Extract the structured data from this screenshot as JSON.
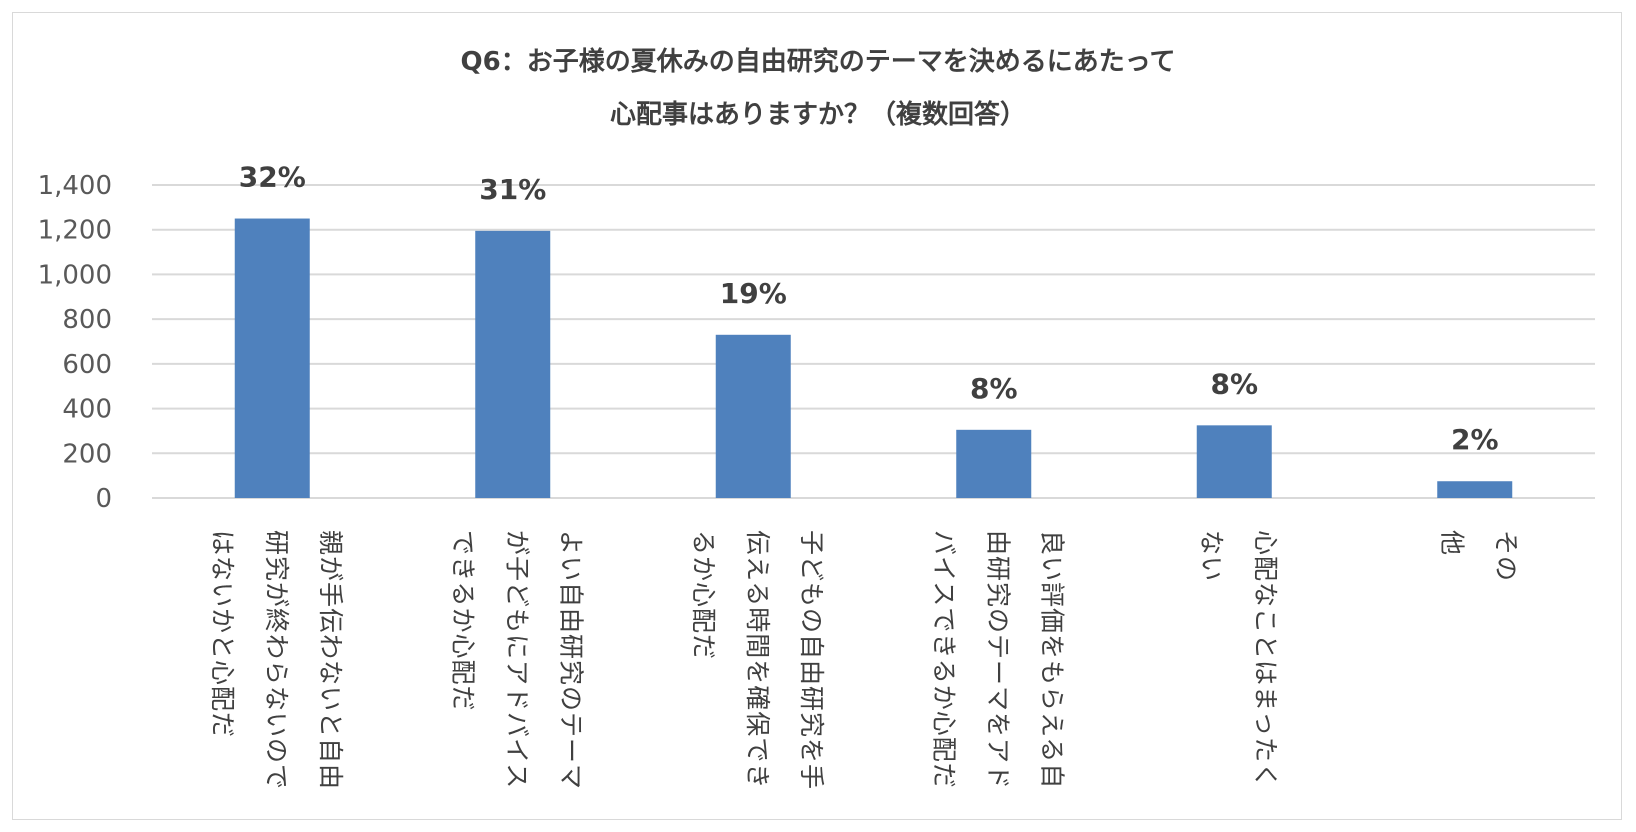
{
  "chart_data": {
    "type": "bar",
    "title": "Q6：お子様の夏休みの自由研究のテーマを決めるにあたって",
    "subtitle": "心配事はありますか？（複数回答）",
    "xlabel": "",
    "ylabel": "",
    "ylim": [
      0,
      1400
    ],
    "yticks": [
      0,
      200,
      400,
      600,
      800,
      1000,
      1200,
      1400
    ],
    "ytick_labels": [
      "0",
      "200",
      "400",
      "600",
      "800",
      "1,000",
      "1,200",
      "1,400"
    ],
    "grid": true,
    "categories": [
      "親が手伝わないと自由研究が終わらないのではないかと心配だ",
      "よい自由研究のテーマが子どもにアドバイスできるか心配だ",
      "子どもの自由研究を手伝える時間を確保できるか心配だ",
      "良い評価をもらえる自由研究のテーマをアドバイスできるか心配だ",
      "心配なことはまったくない",
      "その他"
    ],
    "category_lines": [
      [
        "親が手伝わないと自由",
        "研究が終わらないので",
        "はないかと心配だ"
      ],
      [
        "よい自由研究のテーマ",
        "が子どもにアドバイス",
        "できるか心配だ"
      ],
      [
        "子どもの自由研究を手",
        "伝える時間を確保でき",
        "るか心配だ"
      ],
      [
        "良い評価をもらえる自",
        "由研究のテーマをアド",
        "バイスできるか心配だ"
      ],
      [
        "心配なことはまったく",
        "ない"
      ],
      [
        "その",
        "他"
      ]
    ],
    "values": [
      1250,
      1195,
      730,
      305,
      325,
      75
    ],
    "data_labels": [
      "32%",
      "31%",
      "19%",
      "8%",
      "8%",
      "2%"
    ],
    "bar_color": "#4f81bd",
    "grid_color": "#d9d9d9"
  }
}
